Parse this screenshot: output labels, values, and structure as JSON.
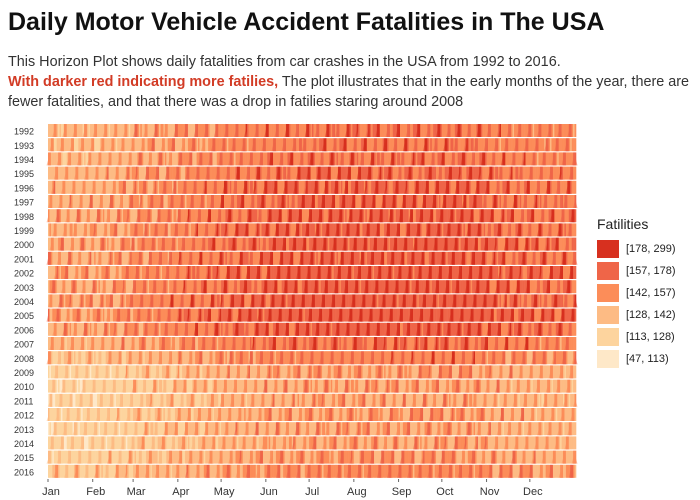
{
  "title": "Daily Motor Vehicle Accident Fatalities in The USA",
  "subtitle": {
    "line1": "This Horizon Plot shows daily fatalities from car crashes in the USA from 1992 to 2016.",
    "highlight": "With darker red indicating more fatilies,",
    "rest": " The plot illustrates that in the early months of the year, there are fewer fatalities, and that there was a drop in fatilies staring around 2008"
  },
  "chart_data": {
    "type": "heatmap",
    "title": "Daily Motor Vehicle Accident Fatalities in The USA",
    "years": [
      "1992",
      "1993",
      "1994",
      "1995",
      "1996",
      "1997",
      "1998",
      "1999",
      "2000",
      "2001",
      "2002",
      "2003",
      "2004",
      "2005",
      "2006",
      "2007",
      "2008",
      "2009",
      "2010",
      "2011",
      "2012",
      "2013",
      "2014",
      "2015",
      "2016"
    ],
    "months": [
      "Jan",
      "Feb",
      "Mar",
      "Apr",
      "May",
      "Jun",
      "Jul",
      "Aug",
      "Sep",
      "Oct",
      "Nov",
      "Dec"
    ],
    "month_start_day": [
      1,
      32,
      60,
      91,
      121,
      152,
      182,
      213,
      244,
      274,
      305,
      335
    ],
    "days_per_year": 366,
    "year_level": [
      2.9,
      2.8,
      2.9,
      3.1,
      3.2,
      3.2,
      3.3,
      3.3,
      3.4,
      3.3,
      3.5,
      3.4,
      3.5,
      3.6,
      3.4,
      3.0,
      2.6,
      2.0,
      1.9,
      1.8,
      2.0,
      1.9,
      1.9,
      2.1,
      2.4
    ],
    "month_effect": [
      -1.1,
      -1.1,
      -0.6,
      -0.3,
      0.1,
      0.3,
      0.5,
      0.5,
      0.4,
      0.6,
      0.2,
      0.0
    ],
    "legend": {
      "title": "Fatilities",
      "bins": [
        {
          "label": "[178, 299)",
          "color": "#d7301f"
        },
        {
          "label": "[157, 178)",
          "color": "#ef6548"
        },
        {
          "label": "[142, 157)",
          "color": "#fc8d59"
        },
        {
          "label": "[128, 142)",
          "color": "#fdbb84"
        },
        {
          "label": "[113, 128)",
          "color": "#fdd49e"
        },
        {
          "label": "[47, 113)",
          "color": "#fee8c8"
        }
      ]
    }
  }
}
